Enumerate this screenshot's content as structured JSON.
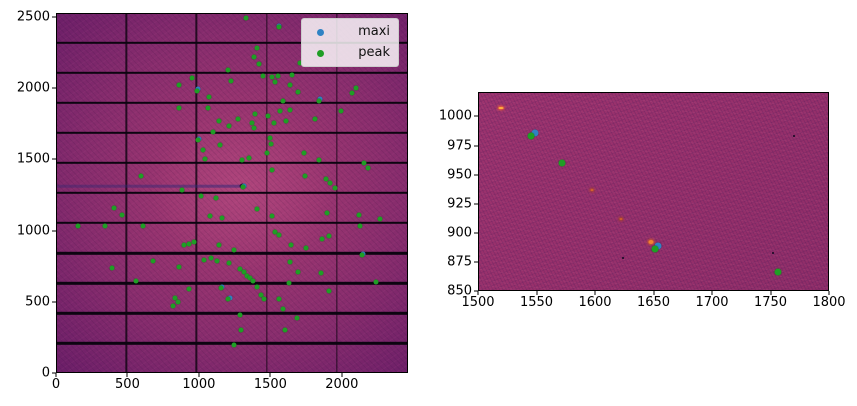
{
  "chart_data": [
    {
      "id": "detector_overview",
      "type": "scatter",
      "title": "",
      "xlabel": "",
      "ylabel": "",
      "xlim": [
        0,
        2463
      ],
      "ylim": [
        0,
        2527
      ],
      "xticks": [
        0,
        500,
        1000,
        1500,
        2000
      ],
      "yticks": [
        0,
        500,
        1000,
        1500,
        2000,
        2500
      ],
      "grid": false,
      "legend": {
        "position": "upper right",
        "entries": [
          {
            "label": "maxi",
            "color": "#2f82c4"
          },
          {
            "label": "peak",
            "color": "#1f9e25"
          }
        ]
      },
      "background": {
        "description": "pilatus-style detector image, inferno colormap, bright diffuse center",
        "corner_color": "#470f5e",
        "center_color": "#a23a73",
        "gap_rows_y": [
          203,
          415,
          627,
          839,
          1051,
          1263,
          1475,
          1687,
          1899,
          2111,
          2323
        ],
        "gap_cols_x": [
          487,
          981,
          1475,
          1969
        ],
        "beam_arm": {
          "y": 1313,
          "x_end": 1310
        }
      },
      "series": [
        {
          "name": "maxi",
          "color": "#2f82c4",
          "points": [
            [
              1565,
              2444
            ],
            [
              992,
              1995
            ],
            [
              1849,
              1924
            ],
            [
              1000,
              1644
            ],
            [
              2156,
              836
            ],
            [
              1163,
              598
            ],
            [
              1214,
              520
            ],
            [
              1316,
              1312
            ]
          ]
        },
        {
          "name": "peak",
          "color": "#1f9e25",
          "points": [
            [
              861,
              2029
            ],
            [
              952,
              2078
            ],
            [
              987,
              1987
            ],
            [
              1071,
              1944
            ],
            [
              1204,
              2134
            ],
            [
              1225,
              2057
            ],
            [
              861,
              1867
            ],
            [
              1064,
              1860
            ],
            [
              1141,
              1769
            ],
            [
              1211,
              1734
            ],
            [
              1099,
              1692
            ],
            [
              994,
              1636
            ],
            [
              1148,
              1600
            ],
            [
              1029,
              1565
            ],
            [
              1043,
              1502
            ],
            [
              588,
              1383
            ],
            [
              882,
              1285
            ],
            [
              1330,
              2499
            ],
            [
              1561,
              2436
            ],
            [
              1407,
              2288
            ],
            [
              1386,
              2225
            ],
            [
              1421,
              2176
            ],
            [
              1708,
              2183
            ],
            [
              1449,
              2092
            ],
            [
              1512,
              2085
            ],
            [
              1554,
              2092
            ],
            [
              1652,
              2099
            ],
            [
              1533,
              2050
            ],
            [
              1638,
              2029
            ],
            [
              1694,
              1979
            ],
            [
              2107,
              2008
            ],
            [
              2079,
              1966
            ],
            [
              1589,
              1916
            ],
            [
              1841,
              1916
            ],
            [
              1568,
              1839
            ],
            [
              1638,
              1846
            ],
            [
              1484,
              1804
            ],
            [
              1393,
              1818
            ],
            [
              2002,
              1839
            ],
            [
              1274,
              1783
            ],
            [
              1372,
              1755
            ],
            [
              1526,
              1755
            ],
            [
              1610,
              1769
            ],
            [
              1813,
              1783
            ],
            [
              1386,
              1720
            ],
            [
              1498,
              1650
            ],
            [
              1505,
              1607
            ],
            [
              1477,
              1544
            ],
            [
              1736,
              1544
            ],
            [
              1351,
              1509
            ],
            [
              1302,
              1495
            ],
            [
              1841,
              1495
            ],
            [
              2163,
              1474
            ],
            [
              2191,
              1439
            ],
            [
              1512,
              1425
            ],
            [
              1743,
              1383
            ],
            [
              1890,
              1362
            ],
            [
              1918,
              1334
            ],
            [
              1953,
              1299
            ],
            [
              1309,
              1306
            ],
            [
              399,
              1158
            ],
            [
              455,
              1109
            ],
            [
              147,
              1032
            ],
            [
              336,
              1032
            ],
            [
              602,
              1032
            ],
            [
              896,
              898
            ],
            [
              931,
              906
            ],
            [
              966,
              920
            ],
            [
              1141,
              898
            ],
            [
              1010,
              1242
            ],
            [
              1120,
              1228
            ],
            [
              1078,
              1102
            ],
            [
              1162,
              1088
            ],
            [
              1036,
              793
            ],
            [
              1085,
              807
            ],
            [
              1127,
              786
            ],
            [
              1211,
              772
            ],
            [
              679,
              786
            ],
            [
              385,
              737
            ],
            [
              861,
              744
            ],
            [
              553,
              639
            ],
            [
              931,
              583
            ],
            [
              1155,
              590
            ],
            [
              833,
              519
            ],
            [
              854,
              491
            ],
            [
              819,
              463
            ],
            [
              1204,
              512
            ],
            [
              1407,
              1151
            ],
            [
              1512,
              1102
            ],
            [
              1897,
              1123
            ],
            [
              2128,
              1109
            ],
            [
              2275,
              1081
            ],
            [
              2135,
              1032
            ],
            [
              1533,
              990
            ],
            [
              1561,
              969
            ],
            [
              1862,
              941
            ],
            [
              1911,
              962
            ],
            [
              1645,
              898
            ],
            [
              1750,
              877
            ],
            [
              1246,
              863
            ],
            [
              2149,
              828
            ],
            [
              1638,
              779
            ],
            [
              1694,
              709
            ],
            [
              1855,
              702
            ],
            [
              1288,
              730
            ],
            [
              1316,
              709
            ],
            [
              1337,
              681
            ],
            [
              1358,
              660
            ],
            [
              1379,
              639
            ],
            [
              1407,
              597
            ],
            [
              1631,
              625
            ],
            [
              2247,
              632
            ],
            [
              1911,
              569
            ],
            [
              1435,
              541
            ],
            [
              1456,
              512
            ],
            [
              1561,
              512
            ],
            [
              1589,
              442
            ],
            [
              1288,
              400
            ],
            [
              1687,
              379
            ],
            [
              1603,
              295
            ],
            [
              1295,
              295
            ],
            [
              1246,
              189
            ]
          ]
        }
      ]
    },
    {
      "id": "detector_zoom",
      "type": "scatter",
      "title": "",
      "xlabel": "",
      "ylabel": "",
      "xlim": [
        1500,
        1800
      ],
      "ylim": [
        850,
        1021
      ],
      "xticks": [
        1500,
        1550,
        1600,
        1650,
        1700,
        1750,
        1800
      ],
      "yticks": [
        850,
        875,
        900,
        925,
        950,
        975,
        1000
      ],
      "grid": false,
      "background": {
        "description": "zoomed detector region, mottled magenta noise",
        "base_color": "#9a326d"
      },
      "hot_spots": [
        {
          "x": 1519,
          "y": 1008,
          "w": 5,
          "h": 2,
          "color": "#ffae42",
          "glow": "#ff6a2a"
        },
        {
          "x": 1597,
          "y": 937,
          "w": 3,
          "h": 2,
          "color": "#d4622f",
          "glow": "#b34a28"
        },
        {
          "x": 1622,
          "y": 912,
          "w": 3,
          "h": 2,
          "color": "#cf5e2e",
          "glow": "#a84526"
        },
        {
          "x": 1648,
          "y": 892,
          "w": 5,
          "h": 4,
          "color": "#f08233",
          "glow": "#d05a28"
        }
      ],
      "specks": [
        {
          "x": 1771,
          "y": 984
        },
        {
          "x": 1624,
          "y": 878
        },
        {
          "x": 1753,
          "y": 882
        }
      ],
      "series": [
        {
          "name": "maxi",
          "color": "#2f82c4",
          "points": [
            [
              1548,
              986
            ],
            [
              1654,
              888
            ]
          ]
        },
        {
          "name": "peak",
          "color": "#1f9e25",
          "points": [
            [
              1545,
              984
            ],
            [
              1571,
              960
            ],
            [
              1651,
              886
            ],
            [
              1757,
              866
            ]
          ]
        }
      ]
    }
  ]
}
